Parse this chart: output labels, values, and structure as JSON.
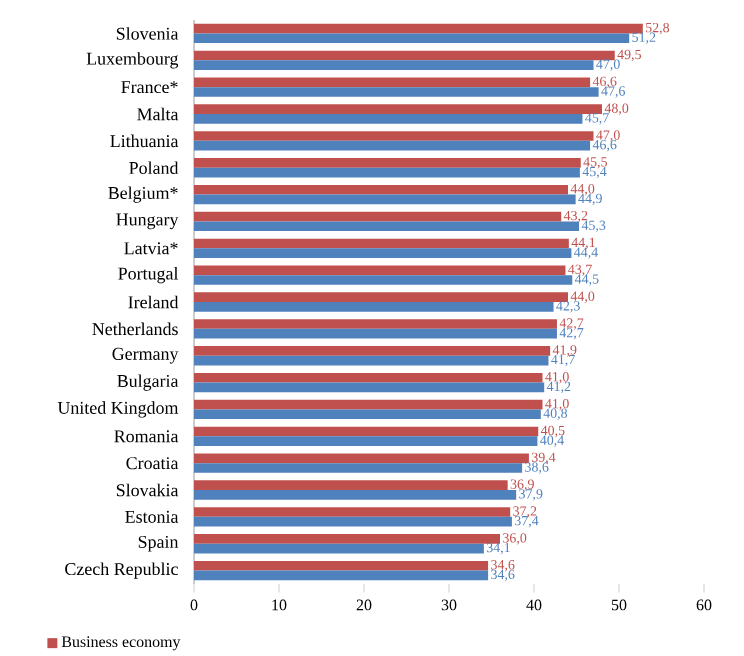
{
  "chart_data": {
    "type": "bar",
    "orientation": "horizontal",
    "categories": [
      "Slovenia",
      "Luxembourg",
      "France*",
      "Malta",
      "Lithuania",
      "Poland",
      "Belgium*",
      "Hungary",
      "Latvia*",
      "Portugal",
      "Ireland",
      "Netherlands",
      "Germany",
      "Bulgaria",
      "United Kingdom",
      "Romania",
      "Croatia",
      "Slovakia",
      "Estonia",
      "Spain",
      "Czech Republic"
    ],
    "series": [
      {
        "name": "Business economy",
        "color": "#c0504d",
        "values": [
          52.8,
          49.5,
          46.6,
          48.0,
          47.0,
          45.5,
          44.0,
          43.2,
          44.1,
          43.7,
          44.0,
          42.7,
          41.9,
          41.0,
          41.0,
          40.5,
          39.4,
          36.9,
          37.2,
          36.0,
          34.6
        ],
        "value_labels": [
          "52,8",
          "49,5",
          "46,6",
          "48,0",
          "47,0",
          "45,5",
          "44,0",
          "43,2",
          "44,1",
          "43,7",
          "44,0",
          "42,7",
          "41,9",
          "41,0",
          "41,0",
          "40,5",
          "39,4",
          "36,9",
          "37,2",
          "36,0",
          "34,6"
        ]
      },
      {
        "color": "#4f81bd",
        "values": [
          51.2,
          47.0,
          47.6,
          45.7,
          46.6,
          45.4,
          44.9,
          45.3,
          44.4,
          44.5,
          42.3,
          42.7,
          41.7,
          41.2,
          40.8,
          40.4,
          38.6,
          37.9,
          37.4,
          34.1,
          34.6
        ],
        "value_labels": [
          "51,2",
          "47,0",
          "47,6",
          "45,7",
          "46,6",
          "45,4",
          "44,9",
          "45,3",
          "44,4",
          "44,5",
          "42,3",
          "42,7",
          "41,7",
          "41,2",
          "40,8",
          "40,4",
          "38,6",
          "37,9",
          "37,4",
          "34,1",
          "34,6"
        ]
      }
    ],
    "xlim": [
      0,
      60
    ],
    "xticks": [
      0,
      10,
      20,
      30,
      40,
      50,
      60
    ],
    "legend": "bottom"
  }
}
